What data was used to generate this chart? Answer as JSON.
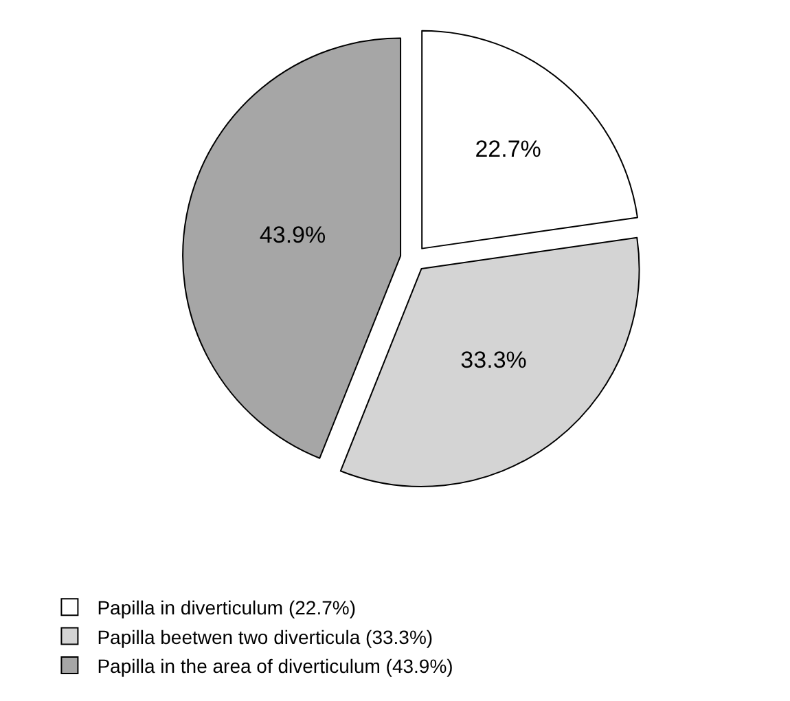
{
  "chart_data": {
    "type": "pie",
    "categories": [
      "Papilla in diverticulum (22.7%)",
      "Papilla beetwen two diverticula (33.3%)",
      "Papilla in the area of diverticulum (43.9%)"
    ],
    "values": [
      22.7,
      33.3,
      43.9
    ],
    "value_labels": [
      "22.7%",
      "33.3%",
      "43.9%"
    ],
    "colors": [
      "#ffffff",
      "#d4d4d4",
      "#a6a6a6"
    ],
    "legend": "bottom left"
  }
}
